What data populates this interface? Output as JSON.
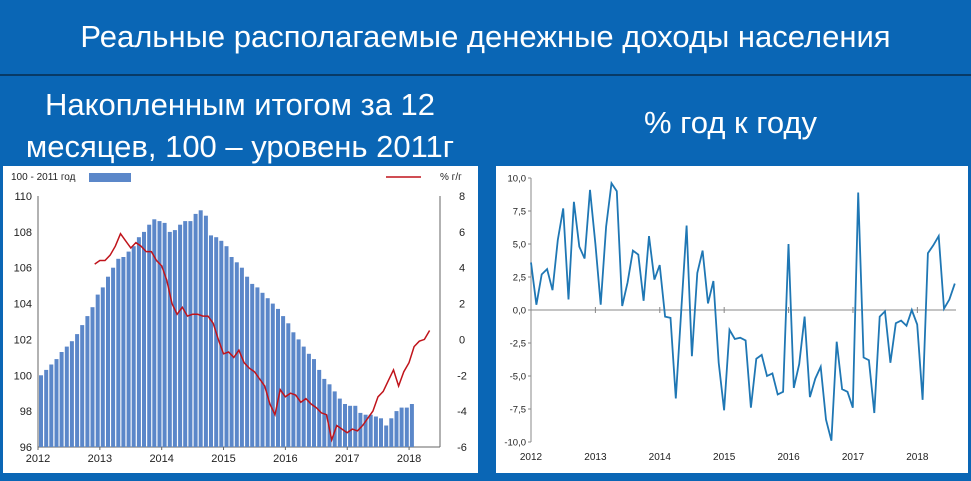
{
  "header": {
    "title": "Реальные располагаемые денежные доходы населения",
    "left_subtitle_line1": "Накопленным итогом за 12",
    "left_subtitle_line2": "месяцев, 100 – уровень 2011г",
    "right_subtitle": "% год к году"
  },
  "chart_data": [
    {
      "type": "bar",
      "legend_bar": "100 - 2011 год",
      "legend_line": "%  г/г",
      "legend_placement": "top",
      "x_tick_labels": [
        "2012",
        "2013",
        "2014",
        "2015",
        "2016",
        "2017",
        "2018"
      ],
      "y_left_ticks": [
        96,
        98,
        100,
        102,
        104,
        106,
        108,
        110
      ],
      "y_left_range": [
        96,
        110
      ],
      "y_right_ticks": [
        -6,
        -4,
        -2,
        0,
        2,
        4,
        6,
        8
      ],
      "y_right_range": [
        -6,
        8
      ],
      "x_start": 2012.0,
      "x_step": 0.0833,
      "bar_color": "#5b87c9",
      "line_color": "#c0141b",
      "bars_left_axis": [
        100.0,
        100.3,
        100.6,
        100.9,
        101.3,
        101.6,
        101.9,
        102.3,
        102.8,
        103.3,
        103.8,
        104.5,
        104.9,
        105.5,
        106.0,
        106.5,
        106.6,
        106.9,
        107.2,
        107.7,
        108.0,
        108.4,
        108.7,
        108.6,
        108.5,
        108.0,
        108.1,
        108.4,
        108.6,
        108.6,
        109.0,
        109.2,
        108.9,
        107.8,
        107.7,
        107.5,
        107.2,
        106.6,
        106.3,
        106.0,
        105.5,
        105.1,
        104.9,
        104.6,
        104.3,
        104.0,
        103.7,
        103.3,
        102.9,
        102.4,
        102.0,
        101.6,
        101.2,
        100.9,
        100.3,
        99.8,
        99.5,
        99.1,
        98.7,
        98.4,
        98.3,
        98.3,
        97.9,
        97.8,
        97.8,
        97.7,
        97.6,
        97.2,
        97.6,
        98.0,
        98.2,
        98.2,
        98.4
      ],
      "line_x_start": 2012.9167,
      "line_right_axis": [
        4.2,
        4.4,
        4.4,
        4.7,
        5.2,
        5.9,
        5.5,
        5.1,
        5.4,
        5.2,
        4.9,
        4.9,
        4.4,
        4.1,
        3.3,
        2.0,
        1.4,
        1.8,
        1.3,
        1.4,
        1.4,
        1.3,
        1.3,
        0.9,
        0.0,
        -0.8,
        -0.7,
        -1.0,
        -0.6,
        -1.3,
        -1.6,
        -1.8,
        -2.2,
        -2.6,
        -3.6,
        -4.2,
        -2.8,
        -3.2,
        -3.0,
        -3.1,
        -3.5,
        -3.3,
        -3.6,
        -3.8,
        -4.1,
        -4.2,
        -5.6,
        -4.8,
        -5.0,
        -5.2,
        -5.0,
        -5.1,
        -4.8,
        -4.4,
        -4.0,
        -3.2,
        -2.9,
        -2.3,
        -1.7,
        -2.6,
        -1.8,
        -1.3,
        -0.4,
        -0.1,
        0.0,
        0.5
      ]
    },
    {
      "type": "line",
      "x_tick_labels": [
        "2012",
        "2013",
        "2014",
        "2015",
        "2016",
        "2017",
        "2018"
      ],
      "y_tick_labels": [
        "10,0",
        "7,5",
        "5,0",
        "2,5",
        "0,0",
        "-2,5",
        "-5,0",
        "-7,5",
        "-10,0"
      ],
      "y_range": [
        -10,
        10
      ],
      "grid": false,
      "x_start": 2012.0,
      "x_step": 0.0833,
      "line_color": "#1f77b4",
      "values": [
        3.6,
        0.4,
        2.7,
        3.1,
        1.5,
        5.3,
        7.7,
        0.8,
        8.2,
        4.8,
        3.9,
        9.1,
        5.0,
        0.4,
        6.3,
        9.6,
        9.0,
        0.3,
        2.1,
        4.5,
        4.2,
        0.7,
        5.6,
        2.3,
        3.4,
        -0.5,
        -0.6,
        -6.7,
        -0.1,
        6.4,
        -3.5,
        2.8,
        4.5,
        0.5,
        2.2,
        -4.0,
        -7.6,
        -1.5,
        -2.2,
        -2.1,
        -2.3,
        -7.4,
        -3.7,
        -3.4,
        -5.0,
        -4.8,
        -6.4,
        -6.2,
        5.0,
        -5.9,
        -4.1,
        -0.5,
        -6.6,
        -5.2,
        -4.3,
        -8.3,
        -9.9,
        -2.4,
        -6.0,
        -6.2,
        -7.4,
        8.9,
        -3.6,
        -3.8,
        -7.8,
        -0.5,
        -0.1,
        -4.0,
        -1.0,
        -0.8,
        -1.2,
        0.0,
        -1.1,
        -6.8,
        4.3,
        4.9,
        5.6,
        0.1,
        0.8,
        2.0
      ]
    }
  ]
}
